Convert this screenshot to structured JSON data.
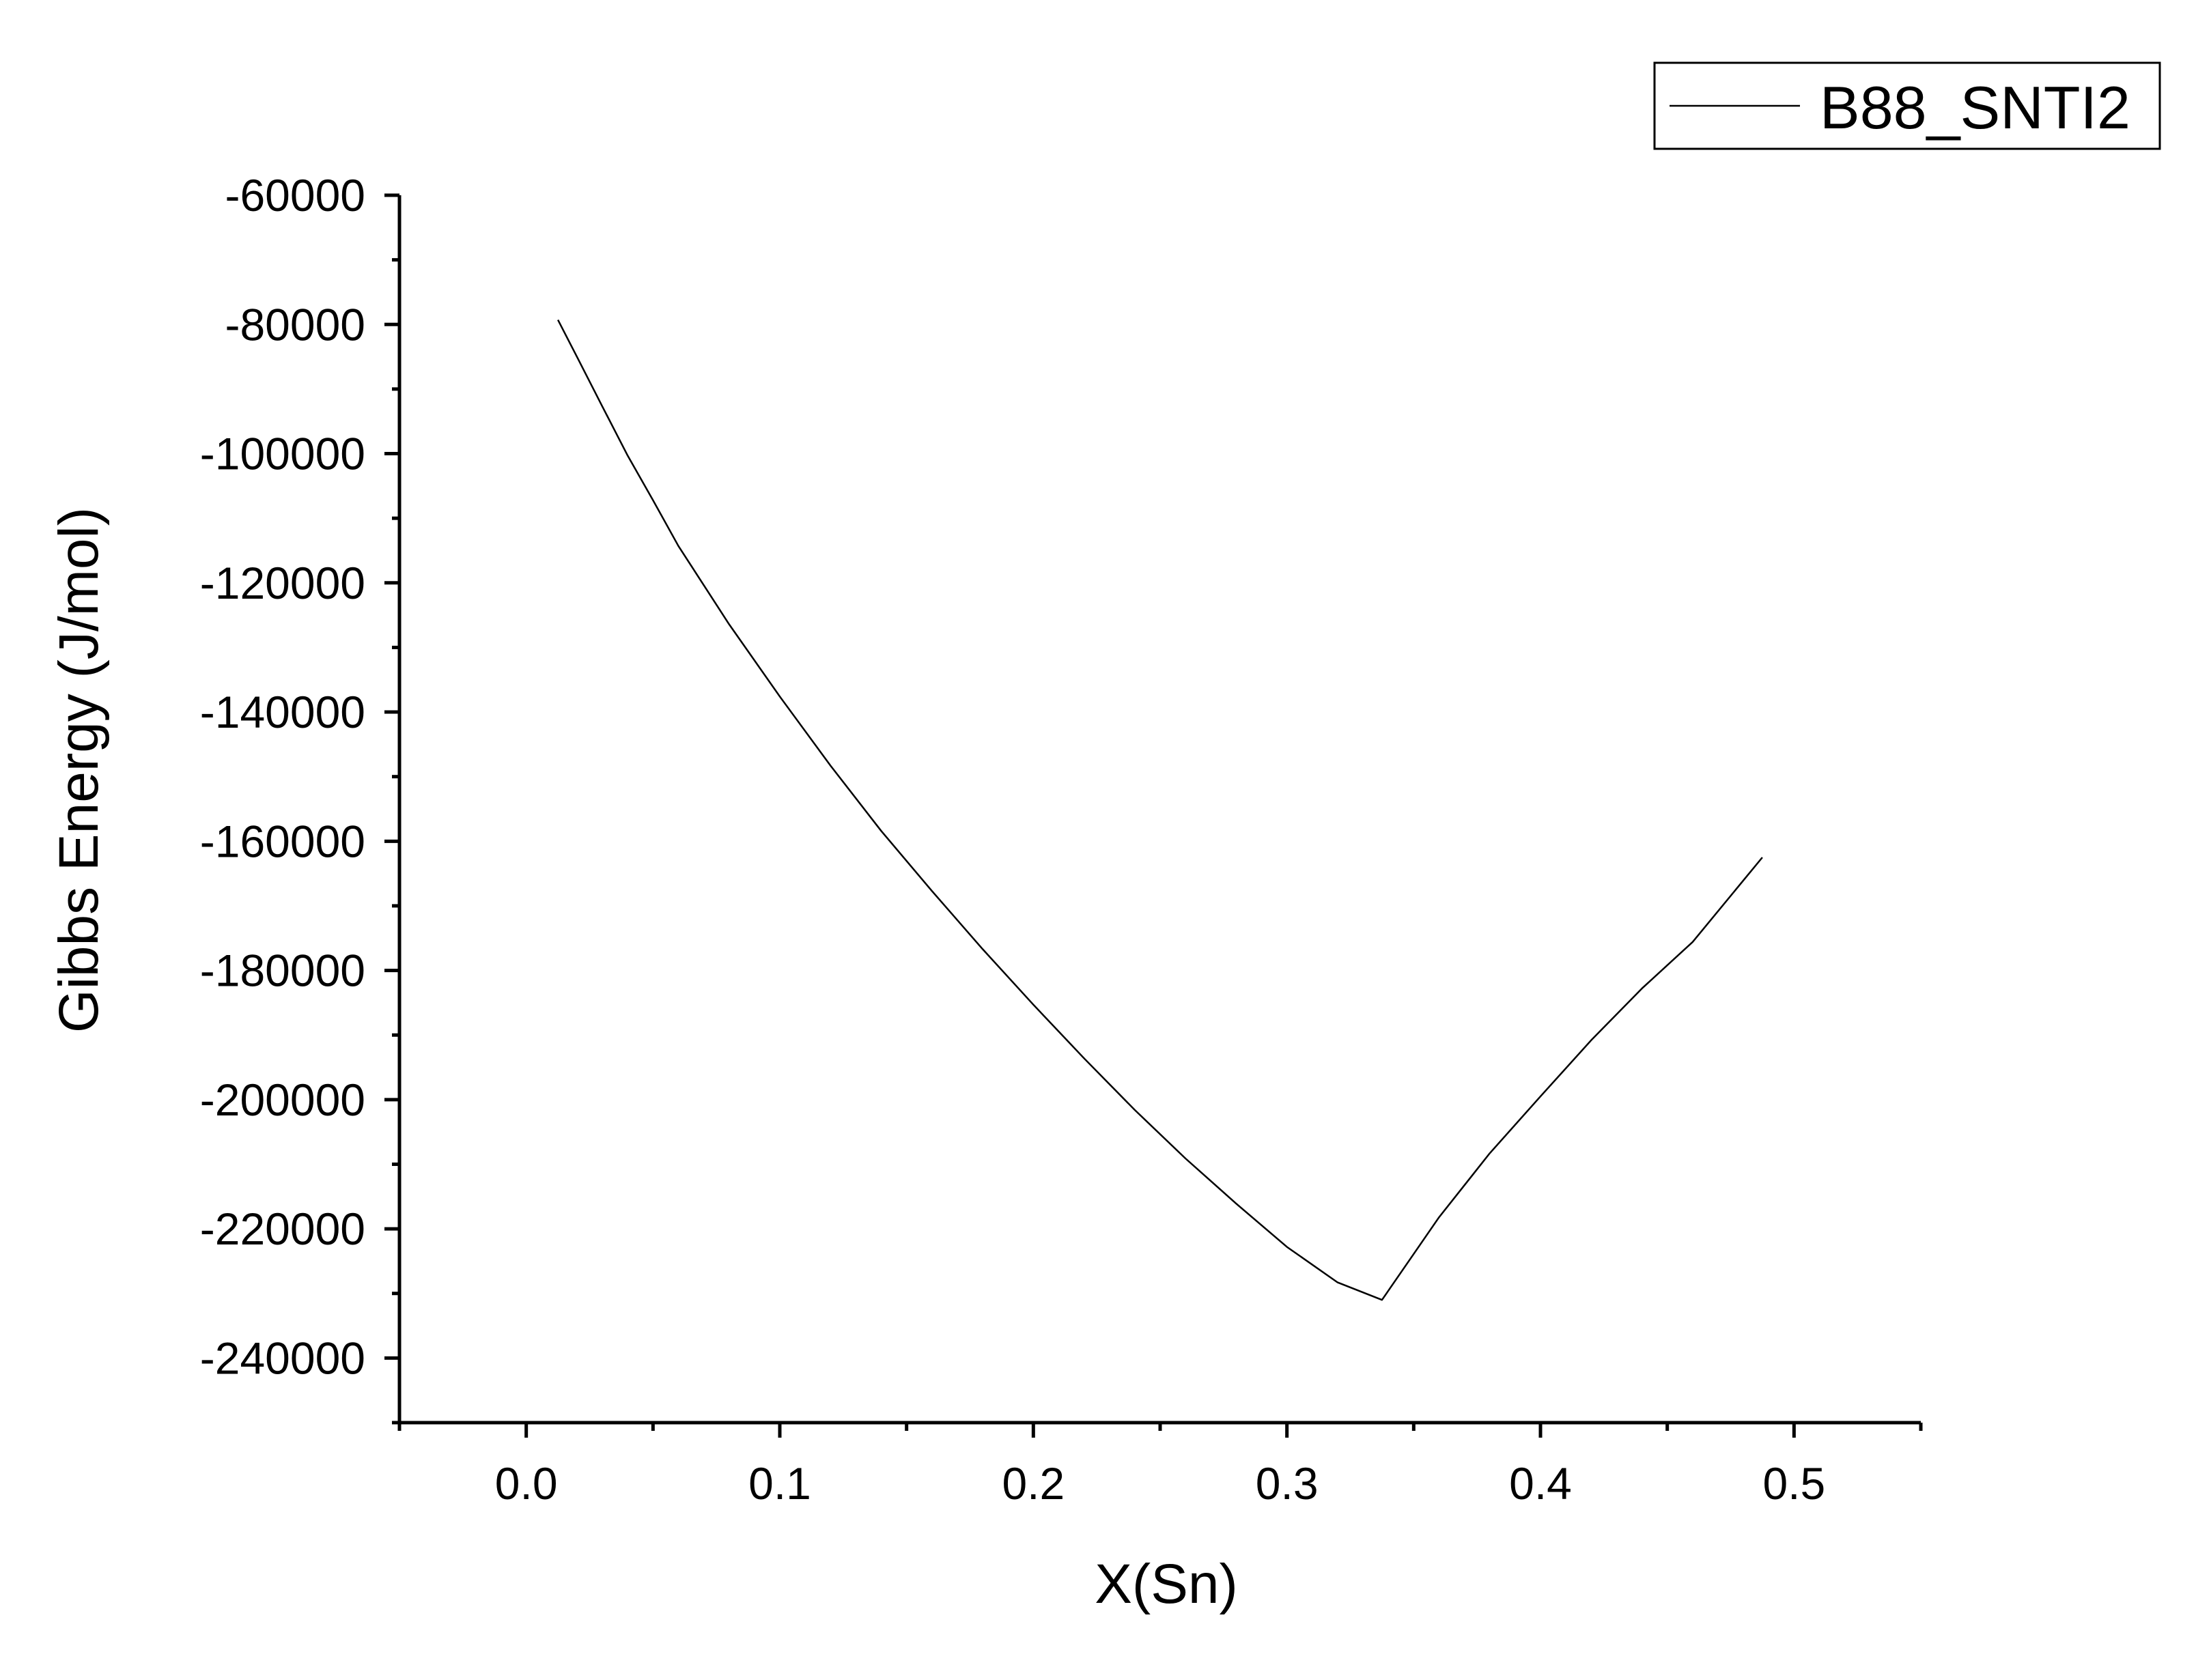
{
  "chart_data": {
    "type": "line",
    "xlabel": "X(Sn)",
    "ylabel": "Gibbs Energy (J/mol)",
    "xlim": [
      -0.05,
      0.55
    ],
    "ylim": [
      -250000,
      -60000
    ],
    "xticks": [
      0.0,
      0.1,
      0.2,
      0.3,
      0.4,
      0.5
    ],
    "xtick_labels": [
      "0.0",
      "0.1",
      "0.2",
      "0.3",
      "0.4",
      "0.5"
    ],
    "yticks": [
      -60000,
      -80000,
      -100000,
      -120000,
      -140000,
      -160000,
      -180000,
      -200000,
      -220000,
      -240000
    ],
    "ytick_labels": [
      "-60000",
      "-80000",
      "-100000",
      "-120000",
      "-140000",
      "-160000",
      "-180000",
      "-200000",
      "-220000",
      "-240000"
    ],
    "grid": false,
    "legend_position": "top-right",
    "series": [
      {
        "name": "B88_SNTI2",
        "color": "#000000",
        "x": [
          0.0125,
          0.02,
          0.03,
          0.04,
          0.05,
          0.06,
          0.08,
          0.1,
          0.12,
          0.14,
          0.16,
          0.18,
          0.2,
          0.22,
          0.24,
          0.26,
          0.28,
          0.3,
          0.32,
          0.3375,
          0.36,
          0.38,
          0.4,
          0.42,
          0.44,
          0.46,
          0.4875
        ],
        "y": [
          -79300,
          -85000,
          -92700,
          -100300,
          -107200,
          -114300,
          -126400,
          -137600,
          -148300,
          -158400,
          -167700,
          -176700,
          -185300,
          -193600,
          -201600,
          -209100,
          -216100,
          -222800,
          -228300,
          -231000,
          -218200,
          -208300,
          -199500,
          -190800,
          -182800,
          -175600,
          -162500
        ]
      }
    ]
  }
}
